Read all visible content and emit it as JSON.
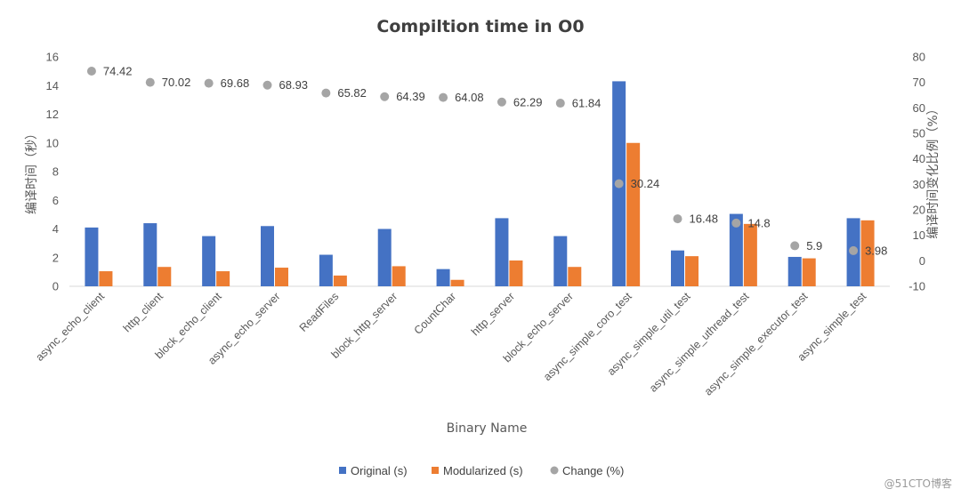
{
  "chart_data": {
    "type": "bar",
    "title": "Compiltion time in O0",
    "xlabel": "Binary Name",
    "ylabel": "编译时间（秒）",
    "y2label": "编译时间变化比例（%）",
    "ylim": [
      0,
      16
    ],
    "yticks": [
      0,
      2,
      4,
      6,
      8,
      10,
      12,
      14,
      16
    ],
    "y2lim": [
      -10,
      80
    ],
    "y2ticks": [
      -10,
      0,
      10,
      20,
      30,
      40,
      50,
      60,
      70,
      80
    ],
    "grid": false,
    "legend_position": "bottom",
    "categories": [
      "async_echo_client",
      "http_client",
      "block_echo_client",
      "async_echo_server",
      "ReadFiles",
      "block_http_server",
      "CountChar",
      "http_server",
      "block_echo_server",
      "async_simple_coro_test",
      "async_simple_util_test",
      "async_simple_uthread_test",
      "async_simple_executor_test",
      "async_simple_test"
    ],
    "series": [
      {
        "name": "Original (s)",
        "axis": "left",
        "kind": "bar",
        "color": "#4472c4",
        "values": [
          4.1,
          4.4,
          3.5,
          4.2,
          2.2,
          4.0,
          1.2,
          4.75,
          3.5,
          14.3,
          2.5,
          5.05,
          2.05,
          4.75
        ]
      },
      {
        "name": "Modularized (s)",
        "axis": "left",
        "kind": "bar",
        "color": "#ed7d31",
        "values": [
          1.05,
          1.35,
          1.05,
          1.3,
          0.75,
          1.4,
          0.45,
          1.8,
          1.35,
          10.0,
          2.1,
          4.35,
          1.95,
          4.6
        ]
      },
      {
        "name": "Change (%)",
        "axis": "right",
        "kind": "scatter",
        "color": "#a5a5a5",
        "values": [
          74.42,
          70.02,
          69.68,
          68.93,
          65.82,
          64.39,
          64.08,
          62.29,
          61.84,
          30.24,
          16.48,
          14.8,
          5.9,
          3.98
        ],
        "labels": [
          "74.42",
          "70.02",
          "69.68",
          "68.93",
          "65.82",
          "64.39",
          "64.08",
          "62.29",
          "61.84",
          "30.24",
          "16.48",
          "14.8",
          "5.9",
          "3.98"
        ]
      }
    ],
    "watermark": "@51CTO博客"
  }
}
